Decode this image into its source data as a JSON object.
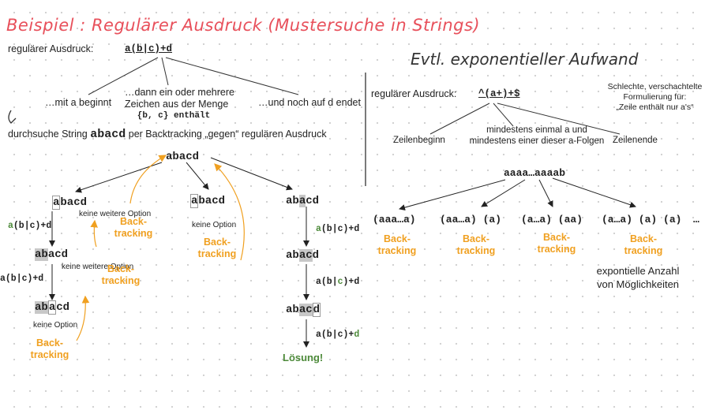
{
  "title": "Beispiel : Regulärer Ausdruck  (Mustersuche in Strings)",
  "left": {
    "regex_label": "regulärer Ausdruck:",
    "regex": "a(b|c)+d",
    "part1": "…mit a beginnt",
    "part2_line1": "…dann ein oder mehrere",
    "part2_line2": "Zeichen aus der Menge",
    "part2_line3": "{b, c}  enthält",
    "part3": "…und noch auf d endet",
    "search_pre": "durchsuche String",
    "search_word": "abacd",
    "search_post": "per Backtracking „gegen“ regulären Ausdruck",
    "root": "abacd",
    "regex_small": "a(b|c)+d",
    "keine_weitere": "keine weitere Option",
    "keine_option": "keine Option",
    "backtracking": "Back-tracking",
    "solution": "Lösung!"
  },
  "right": {
    "title": "Evtl. exponentieller Aufwand",
    "regex_label": "regulärer Ausdruck:",
    "regex": "^(a+)+$",
    "note_line1": "Schlechte, verschachtelte",
    "note_line2": "Formulierung für:",
    "note_line3": "„Zeile enthält nur a's“",
    "zeilenbeginn": "Zeilenbeginn",
    "mid_line1": "mindestens einmal a  und",
    "mid_line2": "mindestens einer dieser a-Folgen",
    "zeilenende": "Zeilenende",
    "root": "aaaa…aaaab",
    "options": [
      "(aaa…a)",
      "(aa…a) (a)",
      "(a…a) (aa)",
      "(a…a) (a) (a)",
      "…"
    ],
    "backtracking": "Back-tracking",
    "exp_line1": "expontielle Anzahl",
    "exp_line2": "von Möglichkeiten"
  },
  "colors": {
    "title": "#e8505b",
    "backtracking": "#f0a020",
    "match": "#4d8a3a",
    "highlight": "#c8c8c8"
  }
}
